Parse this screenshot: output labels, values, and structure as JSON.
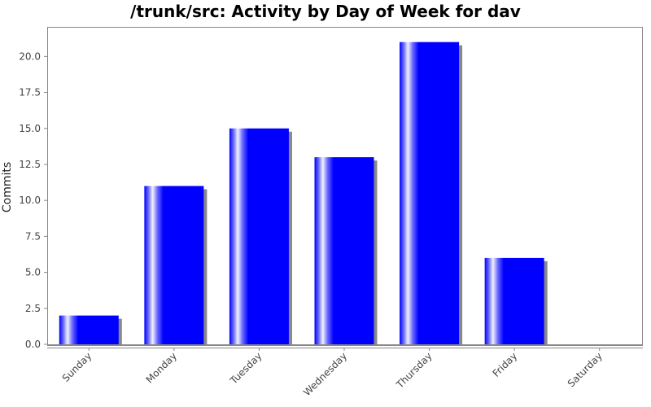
{
  "chart_data": {
    "type": "bar",
    "title": "/trunk/src: Activity by Day of Week for dav",
    "xlabel": "",
    "ylabel": "Commits",
    "categories": [
      "Sunday",
      "Monday",
      "Tuesday",
      "Wednesday",
      "Thursday",
      "Friday",
      "Saturday"
    ],
    "values": [
      2,
      11,
      15,
      13,
      21,
      6,
      0
    ],
    "ylim": [
      0,
      22
    ],
    "yticks": [
      "0.0",
      "2.5",
      "5.0",
      "7.5",
      "10.0",
      "12.5",
      "15.0",
      "17.5",
      "20.0"
    ],
    "bar_color": "#0000ff",
    "shadow_color": "#888888",
    "grid": false,
    "legend": "none"
  }
}
